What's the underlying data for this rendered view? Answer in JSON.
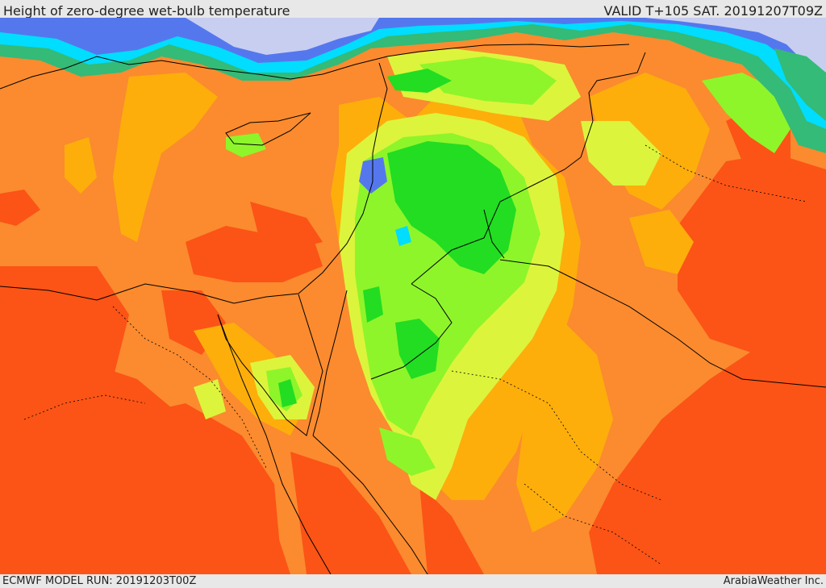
{
  "header": {
    "title": "Height of zero-degree wet-bulb temperature",
    "valid": "VALID T+105 SAT. 20191207T09Z"
  },
  "footer": {
    "model_run": "ECMWF MODEL RUN: 20191203T00Z",
    "credit": "ArabiaWeather Inc."
  },
  "palette": {
    "red_orange": "#fb5416",
    "orange": "#fb8b2e",
    "amber": "#fdae0b",
    "yellow_green": "#ddf43c",
    "light_green": "#8ef52a",
    "green": "#22dd22",
    "teal": "#33bb77",
    "cyan": "#00ddff",
    "blue": "#5577ee",
    "lavender": "#c8cef0",
    "border": "#000000"
  }
}
